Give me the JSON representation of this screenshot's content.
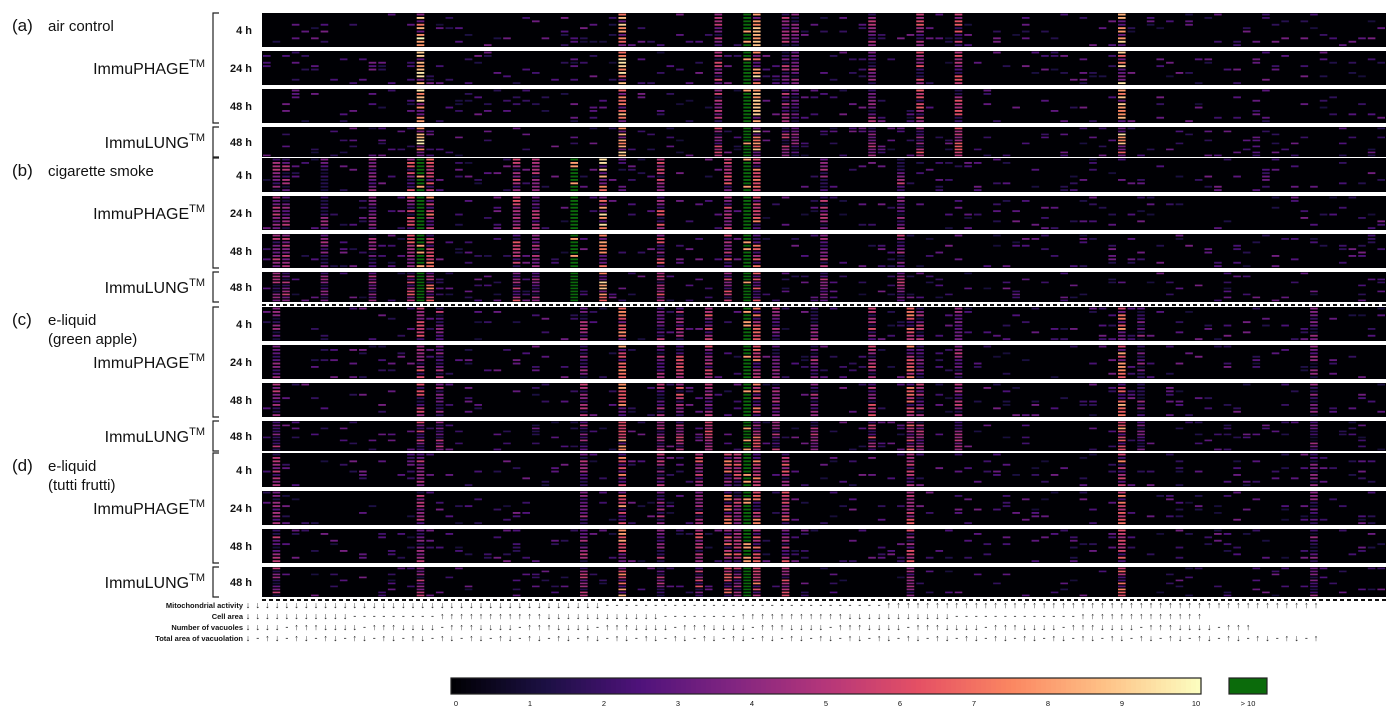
{
  "chart_data": {
    "type": "heatmap",
    "panels": [
      {
        "letter": "(a)",
        "title_lines": [
          "air control"
        ]
      },
      {
        "letter": "(b)",
        "title_lines": [
          "cigarette smoke"
        ]
      },
      {
        "letter": "(c)",
        "title_lines": [
          "e-liquid",
          "(green apple)"
        ]
      },
      {
        "letter": "(d)",
        "title_lines": [
          "e-liquid",
          "(tutti frutti)"
        ]
      }
    ],
    "models": [
      {
        "name": "ImmuPHAGE",
        "superscript": "TM"
      },
      {
        "name": "ImmuLUNG",
        "superscript": "TM"
      }
    ],
    "rows": [
      {
        "time": "4 h",
        "model": "ImmuPHAGE"
      },
      {
        "time": "24 h",
        "model": "ImmuPHAGE"
      },
      {
        "time": "48 h",
        "model": "ImmuPHAGE"
      },
      {
        "time": "48 h",
        "model": "ImmuLUNG"
      }
    ],
    "column_direction_rows": [
      {
        "label": "Mitochondrial activity",
        "symbols": "↓↓↓↓↓↓↓↓↓↓↓↓↓↓↓↓↓↓↓↓↓↓↓↓↓↓↓↓↓↓↓↓↓↓↓↓↓-----------------------------↑↑↑↑↑↑↑↑↑↑↑↑↑↑↑↑↑↑↑↑↑↑↑↑↑↑↑↑↑↑↑↑↑↑↑↑↑↑↑↑↑↑↑↑↑"
      },
      {
        "label": "Cell area",
        "symbols": "↓↓↓↓↓↓↓↓↓↓↓---------↑↑↑↑↑↑↑↑↑↑↑↓↓↓↓↓↓↓↓↓↓↓↓--------↑↑↑↑↑↑↑↑↑↑↑↓↓↓↓↓↓↓↓↓↓↓-------------↑↑↑↑↑↑↑↑↑↑↑↑↑"
      },
      {
        "label": "Number of vacuoles",
        "symbols": "↓↓↓↓-↑↑↑↓↓↓↓-↑↑↑↓↓↓↓-↑↑↑↓↓↓↓-↑↑↑↓↓↓↓-↑↑↑↓↓↓↓-↑↑↑↓↓↓↓-↑↑↑↓↓↓↓-↑↑↑↓↓↓↓-↑↑↑↓↓↓↓-↑↑↑↓↓↓↓-↑↑↑↓↓↓↓-↑↑↑↓↓↓↓-↑↑↑"
      },
      {
        "label": "Total area of vacuolation",
        "symbols": "↓-↑↓-↑↓-↑↓-↑↓-↑↓-↑↓-↑↓-↑↓-↑↓-↑↓-↑↓-↑↓-↑↓-↑↓-↑↓-↑↓-↑↓-↑↓-↑↓-↑↓-↑↓-↑↓-↑↓-↑↓-↑↓-↑↓-↑↓-↑↓-↑↓-↑↓-↑↓-↑↓-↑↓-↑↓-↑↓-↑↓-↑"
      }
    ],
    "n_columns": 117,
    "colorbar": {
      "min": 0,
      "max": 10,
      "tick_labels": [
        "0",
        "1",
        "2",
        "3",
        "4",
        "5",
        "6",
        "7",
        "8",
        "9",
        "10"
      ],
      "overflow_label": "> 10",
      "overflow_color": "#0b6b0b",
      "colormap_stops": [
        "#000004",
        "#1c1044",
        "#4f127b",
        "#812581",
        "#b5367a",
        "#e55064",
        "#fb8761",
        "#fec287",
        "#fcfdbf"
      ]
    },
    "column_profiles": [
      {
        "panel": 0,
        "hot": [
          [
            16,
            8.5
          ],
          [
            37,
            8
          ],
          [
            47,
            4.5
          ],
          [
            50,
            12
          ],
          [
            51,
            8
          ],
          [
            54,
            4
          ],
          [
            55,
            3.5
          ],
          [
            63,
            4
          ],
          [
            68,
            5
          ],
          [
            72,
            5
          ],
          [
            89,
            8
          ]
        ]
      },
      {
        "panel": 1,
        "hot": [
          [
            1,
            4
          ],
          [
            2,
            4
          ],
          [
            6,
            3.5
          ],
          [
            11,
            3.5
          ],
          [
            15,
            5
          ],
          [
            16,
            12
          ],
          [
            17,
            6
          ],
          [
            26,
            5
          ],
          [
            28,
            4
          ],
          [
            32,
            12
          ],
          [
            35,
            8
          ],
          [
            41,
            5
          ],
          [
            48,
            5
          ],
          [
            50,
            12
          ],
          [
            51,
            6
          ],
          [
            58,
            4
          ],
          [
            66,
            4
          ]
        ]
      },
      {
        "panel": 2,
        "hot": [
          [
            1,
            4
          ],
          [
            16,
            5
          ],
          [
            18,
            4
          ],
          [
            33,
            4
          ],
          [
            37,
            7
          ],
          [
            41,
            4
          ],
          [
            43,
            5
          ],
          [
            46,
            5
          ],
          [
            50,
            12
          ],
          [
            51,
            6
          ],
          [
            53,
            4
          ],
          [
            57,
            4
          ],
          [
            63,
            5
          ],
          [
            67,
            6
          ],
          [
            68,
            4
          ],
          [
            72,
            4
          ],
          [
            89,
            7
          ],
          [
            91,
            3
          ],
          [
            109,
            3
          ]
        ]
      },
      {
        "panel": 3,
        "hot": [
          [
            1,
            4
          ],
          [
            16,
            4
          ],
          [
            33,
            4
          ],
          [
            37,
            7
          ],
          [
            41,
            4
          ],
          [
            45,
            5
          ],
          [
            48,
            6
          ],
          [
            49,
            5
          ],
          [
            50,
            12
          ],
          [
            51,
            6
          ],
          [
            54,
            5
          ],
          [
            67,
            5
          ],
          [
            89,
            6
          ],
          [
            109,
            3
          ]
        ]
      }
    ]
  }
}
